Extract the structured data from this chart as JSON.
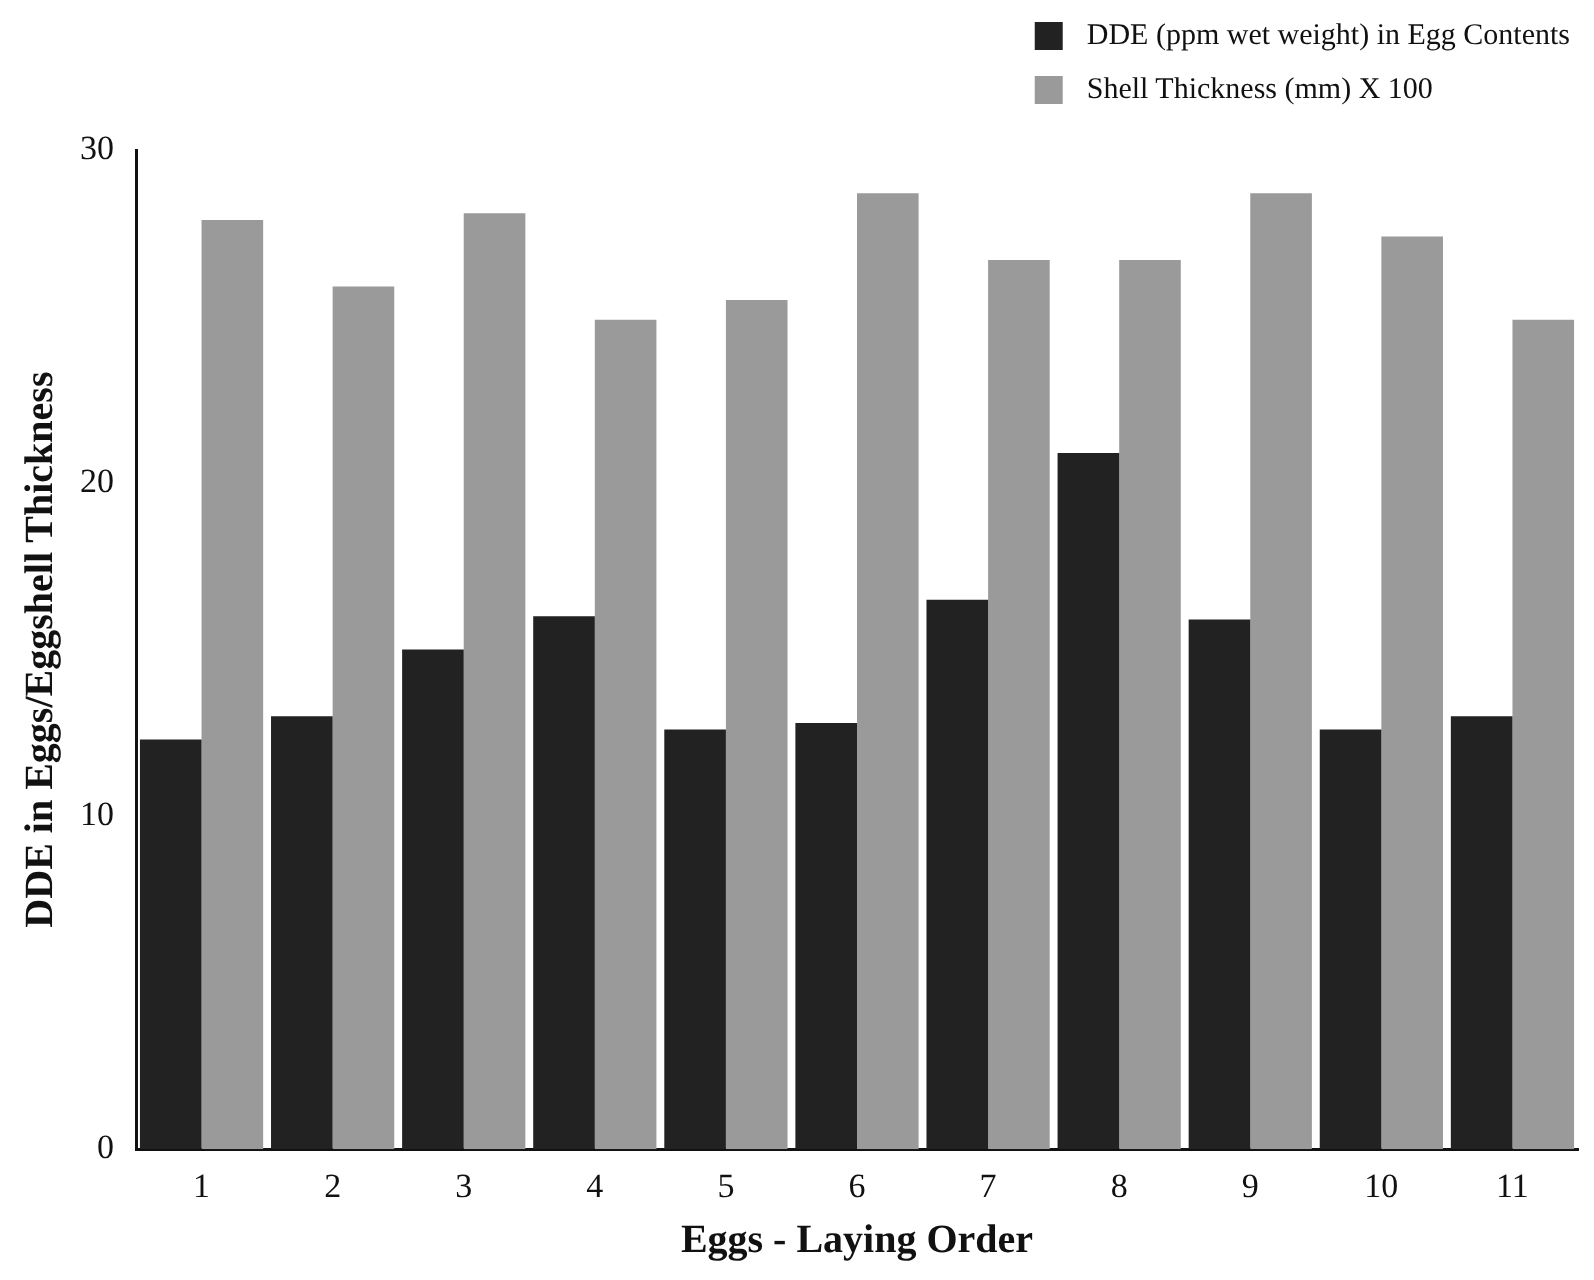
{
  "chart_data": {
    "type": "bar",
    "xlabel": "Eggs - Laying Order",
    "ylabel": "DDE in Eggs/Eggshell Thickness",
    "categories": [
      "1",
      "2",
      "3",
      "4",
      "5",
      "6",
      "7",
      "8",
      "9",
      "10",
      "11"
    ],
    "series": [
      {
        "name": "DDE (ppm wet weight) in Egg Contents",
        "color": "#222222",
        "values": [
          12.3,
          13,
          15,
          16,
          12.6,
          12.8,
          16.5,
          20.9,
          15.9,
          12.6,
          13
        ]
      },
      {
        "name": "Shell Thickness (mm) X 100",
        "color": "#9a9a9a",
        "values": [
          27.9,
          25.9,
          28.1,
          24.9,
          25.5,
          28.7,
          26.7,
          26.7,
          28.7,
          27.4,
          24.9
        ]
      }
    ],
    "ylim": [
      0,
      30
    ],
    "yticks": [
      0,
      10,
      20,
      30
    ],
    "grid": false,
    "legend": "top right"
  }
}
